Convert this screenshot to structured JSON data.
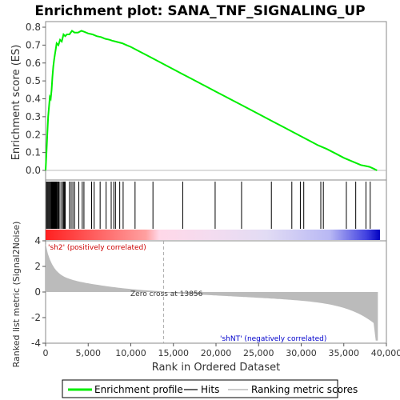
{
  "chart_data": {
    "type": "line",
    "title": "Enrichment plot: SANA_TNF_SIGNALING_UP",
    "xlabel": "Rank in Ordered Dataset",
    "ylabel_top": "Enrichment score (ES)",
    "ylabel_bottom": "Ranked list metric (Signal2Noise)",
    "xlim": [
      0,
      40000
    ],
    "ylim_top": [
      0,
      0.8
    ],
    "ylim_bottom": [
      -4,
      4
    ],
    "x_ticks": [
      "0",
      "5,000",
      "10,000",
      "15,000",
      "20,000",
      "25,000",
      "30,000",
      "35,000",
      "40,000"
    ],
    "y_ticks_top": [
      "0.0",
      "0.1",
      "0.2",
      "0.3",
      "0.4",
      "0.5",
      "0.6",
      "0.7",
      "0.8"
    ],
    "y_ticks_bottom": [
      "4",
      "2",
      "0",
      "-2",
      "-4"
    ],
    "zero_cross_label": "Zero cross at 13856",
    "zero_cross_rank": 13856,
    "positive_label": "'sh2' (positively correlated)",
    "negative_label": "'shNT' (negatively correlated)",
    "series": [
      {
        "name": "Enrichment profile",
        "color": "#00ee00",
        "x": [
          0,
          100,
          200,
          300,
          500,
          600,
          700,
          800,
          900,
          1000,
          1100,
          1200,
          1300,
          1500,
          1700,
          1900,
          2100,
          2300,
          2500,
          2800,
          3100,
          3400,
          3800,
          4200,
          4500,
          5000,
          5500,
          6000,
          6500,
          7000,
          7500,
          7800,
          8200,
          8600,
          9000,
          9500,
          10000,
          11000,
          12000,
          13000,
          14000,
          15000,
          16000,
          17000,
          18000,
          19000,
          20000,
          21000,
          22000,
          23000,
          24000,
          25000,
          26000,
          27000,
          28000,
          29000,
          30000,
          31000,
          32000,
          33000,
          34000,
          35000,
          36000,
          37000,
          37500,
          38000,
          38500,
          38900
        ],
        "values": [
          0.0,
          0.1,
          0.2,
          0.3,
          0.41,
          0.4,
          0.45,
          0.52,
          0.58,
          0.62,
          0.65,
          0.68,
          0.71,
          0.7,
          0.73,
          0.72,
          0.76,
          0.75,
          0.76,
          0.76,
          0.78,
          0.77,
          0.77,
          0.78,
          0.775,
          0.765,
          0.76,
          0.75,
          0.745,
          0.735,
          0.73,
          0.725,
          0.72,
          0.715,
          0.71,
          0.7,
          0.69,
          0.665,
          0.64,
          0.615,
          0.59,
          0.565,
          0.54,
          0.515,
          0.49,
          0.465,
          0.44,
          0.415,
          0.39,
          0.365,
          0.34,
          0.315,
          0.29,
          0.265,
          0.24,
          0.215,
          0.19,
          0.165,
          0.14,
          0.12,
          0.095,
          0.07,
          0.05,
          0.03,
          0.025,
          0.02,
          0.01,
          0.0
        ]
      }
    ],
    "hits": [
      100,
      200,
      300,
      400,
      500,
      600,
      700,
      750,
      800,
      850,
      900,
      950,
      1000,
      1050,
      1100,
      1150,
      1200,
      1250,
      1300,
      1400,
      1500,
      1600,
      1800,
      2000,
      2100,
      2200,
      2300,
      2800,
      3000,
      3200,
      3400,
      3900,
      4300,
      4500,
      5400,
      5700,
      6400,
      7100,
      7700,
      8000,
      8200,
      8700,
      9100,
      10500,
      12600,
      16100,
      19900,
      23000,
      26500,
      28900,
      29900,
      30300,
      32300,
      32600,
      35300,
      36400,
      37600,
      38100
    ],
    "legend": [
      "Enrichment profile",
      "Hits",
      "Ranking metric scores"
    ],
    "colors": {
      "profile": "#00ee00",
      "hits": "#000000",
      "metric": "#bbbbbb",
      "positive": "#ff0000",
      "negative": "#0000ff",
      "positive_label": "#cc0000",
      "negative_label": "#0000cc"
    }
  }
}
